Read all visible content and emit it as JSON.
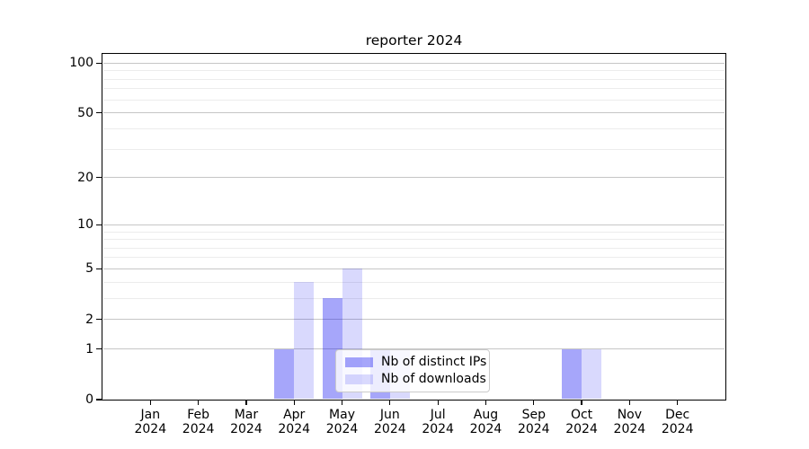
{
  "title": "reporter 2024",
  "chart_data": {
    "type": "bar",
    "title": "reporter 2024",
    "categories": [
      "Jan 2024",
      "Feb 2024",
      "Mar 2024",
      "Apr 2024",
      "May 2024",
      "Jun 2024",
      "Jul 2024",
      "Aug 2024",
      "Sep 2024",
      "Oct 2024",
      "Nov 2024",
      "Dec 2024"
    ],
    "series": [
      {
        "name": "Nb of distinct IPs",
        "color": "rgba(0,0,240,0.35)",
        "values": [
          0,
          0,
          0,
          1,
          3,
          1,
          0,
          0,
          0,
          1,
          0,
          0
        ]
      },
      {
        "name": "Nb of downloads",
        "color": "rgba(0,0,240,0.15)",
        "values": [
          0,
          0,
          0,
          4,
          5,
          1,
          0,
          0,
          0,
          1,
          0,
          0
        ]
      }
    ],
    "xlabel": "",
    "ylabel": "",
    "yscale": "log1p",
    "ylim": [
      0,
      113
    ],
    "yticks_major": [
      0,
      1,
      2,
      5,
      10,
      20,
      50,
      100
    ],
    "yticks_minor": [
      3,
      4,
      6,
      7,
      8,
      9,
      30,
      40,
      60,
      70,
      80,
      90
    ],
    "grid": true,
    "legend_position": "lower center",
    "colors": {
      "grid_major": "#c6c6c6",
      "grid_minor": "#ececec",
      "axis": "#000000",
      "text": "#000000",
      "legend_bg": "rgba(255,255,255,0.8)",
      "legend_border": "#cbcbcb"
    }
  }
}
